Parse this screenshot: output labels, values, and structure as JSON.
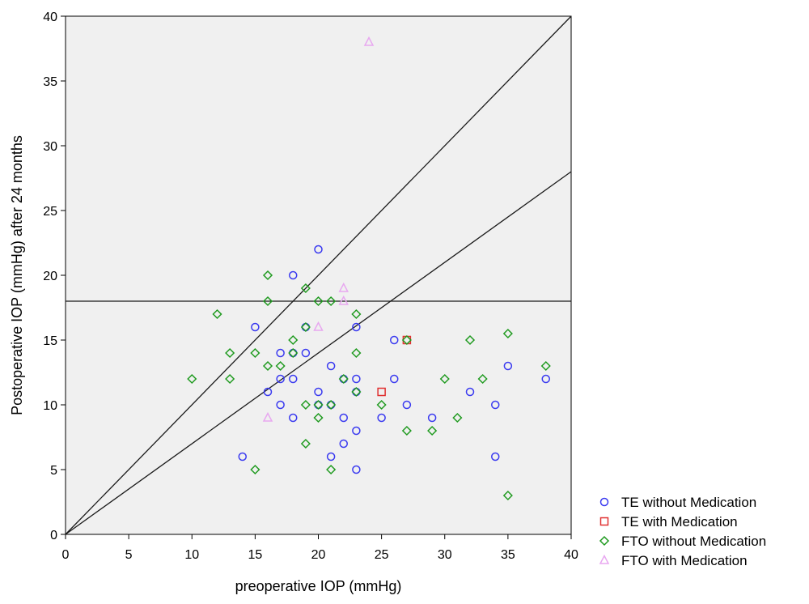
{
  "chart_data": {
    "type": "scatter",
    "xlabel": "preoperative IOP (mmHg)",
    "ylabel": "Postoperative IOP (mmHg) after 24 months",
    "xlim": [
      0,
      40
    ],
    "ylim": [
      0,
      40
    ],
    "xticks": [
      "0",
      "5",
      "10",
      "15",
      "20",
      "25",
      "30",
      "35",
      "40"
    ],
    "yticks": [
      "0",
      "5",
      "10",
      "15",
      "20",
      "25",
      "30",
      "35",
      "40"
    ],
    "grid": false,
    "background": "#f0f0f0",
    "legend_position": "bottom-right (outside plot)",
    "reference_lines": [
      {
        "type": "line",
        "slope": 1,
        "intercept": 0
      },
      {
        "type": "line",
        "slope": 0.7,
        "intercept": 0
      },
      {
        "type": "horizontal",
        "y": 18
      }
    ],
    "series": [
      {
        "name": "TE without Medication",
        "marker": "circle",
        "color": "#3a3af0",
        "points": [
          [
            14,
            6
          ],
          [
            15,
            16
          ],
          [
            16,
            11
          ],
          [
            17,
            14
          ],
          [
            17,
            12
          ],
          [
            17,
            10
          ],
          [
            18,
            20
          ],
          [
            18,
            14
          ],
          [
            18,
            12
          ],
          [
            18,
            9
          ],
          [
            19,
            16
          ],
          [
            19,
            14
          ],
          [
            20,
            22
          ],
          [
            20,
            11
          ],
          [
            20,
            10
          ],
          [
            21,
            13
          ],
          [
            21,
            10
          ],
          [
            21,
            6
          ],
          [
            22,
            12
          ],
          [
            22,
            9
          ],
          [
            22,
            7
          ],
          [
            23,
            16
          ],
          [
            23,
            12
          ],
          [
            23,
            11
          ],
          [
            23,
            8
          ],
          [
            23,
            5
          ],
          [
            25,
            9
          ],
          [
            26,
            15
          ],
          [
            26,
            12
          ],
          [
            27,
            10
          ],
          [
            29,
            9
          ],
          [
            32,
            11
          ],
          [
            34,
            10
          ],
          [
            34,
            6
          ],
          [
            35,
            13
          ],
          [
            38,
            12
          ]
        ]
      },
      {
        "name": "TE with Medication",
        "marker": "square",
        "color": "#e03030",
        "points": [
          [
            25,
            11
          ],
          [
            27,
            15
          ]
        ]
      },
      {
        "name": "FTO without Medication",
        "marker": "diamond",
        "color": "#1f9a1f",
        "points": [
          [
            10,
            12
          ],
          [
            12,
            17
          ],
          [
            13,
            14
          ],
          [
            13,
            12
          ],
          [
            15,
            14
          ],
          [
            15,
            5
          ],
          [
            16,
            20
          ],
          [
            16,
            18
          ],
          [
            16,
            13
          ],
          [
            17,
            13
          ],
          [
            18,
            15
          ],
          [
            18,
            14
          ],
          [
            19,
            19
          ],
          [
            19,
            16
          ],
          [
            19,
            10
          ],
          [
            19,
            7
          ],
          [
            20,
            18
          ],
          [
            20,
            10
          ],
          [
            20,
            9
          ],
          [
            21,
            18
          ],
          [
            21,
            10
          ],
          [
            21,
            5
          ],
          [
            22,
            12
          ],
          [
            23,
            17
          ],
          [
            23,
            14
          ],
          [
            23,
            11
          ],
          [
            25,
            10
          ],
          [
            27,
            15
          ],
          [
            27,
            8
          ],
          [
            29,
            8
          ],
          [
            30,
            12
          ],
          [
            31,
            9
          ],
          [
            32,
            15
          ],
          [
            33,
            12
          ],
          [
            35,
            15.5
          ],
          [
            35,
            3
          ],
          [
            38,
            13
          ]
        ]
      },
      {
        "name": "FTO with Medication",
        "marker": "triangle",
        "color": "#e8a8f0",
        "points": [
          [
            16,
            9
          ],
          [
            20,
            16
          ],
          [
            22,
            19
          ],
          [
            22,
            18
          ],
          [
            24,
            38
          ]
        ]
      }
    ]
  }
}
